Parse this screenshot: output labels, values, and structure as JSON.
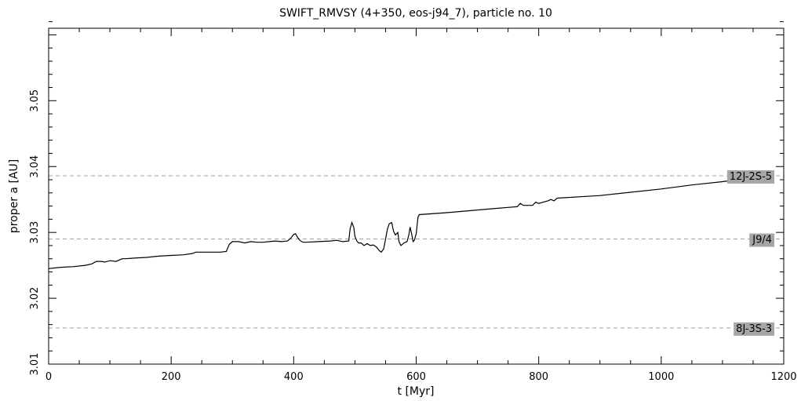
{
  "chart_data": {
    "type": "line",
    "title": "SWIFT_RMVSY (4+350, eos-j94_7), particle no. 10",
    "xlabel": "t [Myr]",
    "ylabel": "proper a [AU]",
    "xlim": [
      0,
      1200
    ],
    "ylim": [
      3.01,
      3.061
    ],
    "x_ticks": [
      0,
      200,
      400,
      600,
      800,
      1000,
      1200
    ],
    "x_tick_labels": [
      "0",
      "200",
      "400",
      "600",
      "800",
      "1000",
      "1200"
    ],
    "y_ticks": [
      3.01,
      3.02,
      3.03,
      3.04,
      3.05
    ],
    "y_tick_labels": [
      "3.01",
      "3.02",
      "3.03",
      "3.04",
      "3.05"
    ],
    "grid": false,
    "resonances": [
      {
        "label": "12J-2S-5",
        "a": 3.0386
      },
      {
        "label": "J9/4",
        "a": 3.029
      },
      {
        "label": "8J-3S-3",
        "a": 3.0155
      }
    ],
    "series": [
      {
        "x": [
          0,
          20,
          40,
          60,
          70,
          78,
          85,
          92,
          100,
          110,
          120,
          125,
          140,
          160,
          180,
          200,
          220,
          235,
          240,
          260,
          280,
          290,
          295,
          300,
          310,
          320,
          330,
          340,
          350,
          360,
          370,
          380,
          390,
          395,
          400,
          403,
          406,
          410,
          415,
          420,
          440,
          460,
          470,
          480,
          490,
          492,
          495,
          498,
          500,
          503,
          506,
          510,
          515,
          520,
          525,
          530,
          535,
          540,
          543,
          547,
          550,
          553,
          556,
          560,
          563,
          566,
          570,
          572,
          575,
          580,
          585,
          588,
          590,
          592,
          595,
          597,
          600,
          603,
          605,
          650,
          700,
          750,
          765,
          770,
          775,
          790,
          795,
          800,
          815,
          820,
          825,
          830,
          900,
          950,
          1000,
          1050,
          1100,
          1150,
          1175
        ],
        "y": [
          3.0245,
          3.0247,
          3.0248,
          3.025,
          3.0252,
          3.0256,
          3.0256,
          3.0255,
          3.0257,
          3.0256,
          3.026,
          3.026,
          3.0261,
          3.0262,
          3.0264,
          3.0265,
          3.0266,
          3.0268,
          3.027,
          3.027,
          3.027,
          3.0271,
          3.0282,
          3.0286,
          3.0286,
          3.0284,
          3.0286,
          3.0285,
          3.0285,
          3.0286,
          3.0287,
          3.0286,
          3.0287,
          3.0291,
          3.0297,
          3.0298,
          3.0293,
          3.0288,
          3.0285,
          3.0285,
          3.0286,
          3.0287,
          3.0288,
          3.0286,
          3.0287,
          3.0305,
          3.0315,
          3.0308,
          3.0294,
          3.0287,
          3.0284,
          3.0284,
          3.028,
          3.0283,
          3.028,
          3.0281,
          3.0278,
          3.0272,
          3.027,
          3.0275,
          3.029,
          3.0305,
          3.0313,
          3.0315,
          3.0302,
          3.0296,
          3.03,
          3.0286,
          3.028,
          3.0284,
          3.0286,
          3.0296,
          3.0308,
          3.03,
          3.0286,
          3.0288,
          3.0298,
          3.0323,
          3.0327,
          3.033,
          3.0334,
          3.0338,
          3.0339,
          3.0344,
          3.0341,
          3.0341,
          3.0346,
          3.0344,
          3.0348,
          3.035,
          3.0348,
          3.0352,
          3.0356,
          3.0361,
          3.0366,
          3.0372,
          3.0377,
          3.0383,
          3.0386
        ]
      }
    ]
  }
}
